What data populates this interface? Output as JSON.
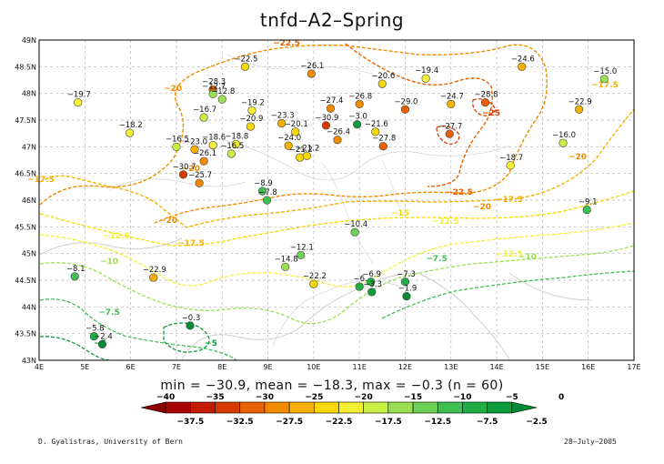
{
  "title": "tnfd–A2–Spring",
  "stats_text": "min = −30.9, mean = −18.3, max = −0.3 (n = 60)",
  "credit": "D. Gyalistras, University of Bern",
  "date": "28–July–2005",
  "axes": {
    "lon_ticks": [
      "4E",
      "5E",
      "6E",
      "7E",
      "8E",
      "9E",
      "10E",
      "11E",
      "12E",
      "13E",
      "14E",
      "15E",
      "16E",
      "17E"
    ],
    "lat_ticks": [
      "43N",
      "43.5N",
      "44N",
      "44.5N",
      "45N",
      "45.5N",
      "46N",
      "46.5N",
      "47N",
      "47.5N",
      "48N",
      "48.5N",
      "49N"
    ],
    "lon_range": [
      4,
      17
    ],
    "lat_range": [
      43,
      49
    ],
    "grid": true
  },
  "colorbar": {
    "upper_labels": [
      "−40",
      "−35",
      "−30",
      "−25",
      "−20",
      "−15",
      "−10",
      "−5",
      "0"
    ],
    "lower_labels": [
      "−37.5",
      "−32.5",
      "−27.5",
      "−22.5",
      "−17.5",
      "−12.5",
      "−7.5",
      "−2.5"
    ],
    "colors": [
      "#8b0000",
      "#a80400",
      "#c41a00",
      "#d93a00",
      "#e86000",
      "#f28a00",
      "#f5b000",
      "#f7d800",
      "#f5f033",
      "#c8ef44",
      "#9be052",
      "#6fd158",
      "#3fc052",
      "#1fae45",
      "#0a9c3a",
      "#048a30"
    ]
  },
  "contour_labels": [
    {
      "text": "−22.5",
      "color": "#e86000"
    },
    {
      "text": "−20",
      "color": "#f28a00"
    },
    {
      "text": "−17.5",
      "color": "#f5b000"
    },
    {
      "text": "−15",
      "color": "#f7d800"
    },
    {
      "text": "−12.5",
      "color": "#f5f033"
    },
    {
      "text": "−10",
      "color": "#9be052"
    },
    {
      "text": "−7.5",
      "color": "#3fc052"
    },
    {
      "text": "−5",
      "color": "#0a9c3a"
    },
    {
      "text": "−25",
      "color": "#d93a00"
    }
  ],
  "stations": [
    {
      "label": "−28.3",
      "lon": 7.8,
      "lat": 48.07,
      "value": -28.3
    },
    {
      "label": "−26.1",
      "lon": 9.95,
      "lat": 48.37,
      "value": -26.1
    },
    {
      "label": "−22.5",
      "lon": 8.5,
      "lat": 48.5,
      "value": -22.5
    },
    {
      "label": "−20.6",
      "lon": 11.5,
      "lat": 48.18,
      "value": -20.6
    },
    {
      "label": "−19.4",
      "lon": 12.45,
      "lat": 48.28,
      "value": -19.4
    },
    {
      "label": "−24.6",
      "lon": 14.55,
      "lat": 48.5,
      "value": -24.6
    },
    {
      "label": "−15.0",
      "lon": 16.35,
      "lat": 48.27,
      "value": -15.0
    },
    {
      "label": "−19.7",
      "lon": 4.85,
      "lat": 47.83,
      "value": -19.7
    },
    {
      "label": "−12.7",
      "lon": 7.8,
      "lat": 47.99,
      "value": -12.7
    },
    {
      "label": "−12.8",
      "lon": 8.0,
      "lat": 47.89,
      "value": -12.8
    },
    {
      "label": "−16.7",
      "lon": 7.6,
      "lat": 47.55,
      "value": -16.7
    },
    {
      "label": "−19.2",
      "lon": 8.65,
      "lat": 47.68,
      "value": -19.2
    },
    {
      "label": "−27.4",
      "lon": 10.37,
      "lat": 47.72,
      "value": -27.4
    },
    {
      "label": "−26.8",
      "lon": 11.0,
      "lat": 47.8,
      "value": -26.8
    },
    {
      "label": "−29.0",
      "lon": 12.0,
      "lat": 47.7,
      "value": -29.0
    },
    {
      "label": "−24.7",
      "lon": 13.0,
      "lat": 47.8,
      "value": -24.7
    },
    {
      "label": "−28.8",
      "lon": 13.75,
      "lat": 47.83,
      "value": -28.8
    },
    {
      "label": "−22.9",
      "lon": 15.8,
      "lat": 47.7,
      "value": -22.9
    },
    {
      "label": "−18.2",
      "lon": 5.98,
      "lat": 47.26,
      "value": -18.2
    },
    {
      "label": "−20.9",
      "lon": 8.62,
      "lat": 47.38,
      "value": -20.9
    },
    {
      "label": "−23.3",
      "lon": 9.3,
      "lat": 47.44,
      "value": -23.3
    },
    {
      "label": "−20.1",
      "lon": 9.6,
      "lat": 47.28,
      "value": -20.1
    },
    {
      "label": "−30.9",
      "lon": 10.27,
      "lat": 47.4,
      "value": -30.9
    },
    {
      "label": "−3.0",
      "lon": 10.95,
      "lat": 47.42,
      "value": -3.0
    },
    {
      "label": "−21.6",
      "lon": 11.35,
      "lat": 47.28,
      "value": -21.6
    },
    {
      "label": "−27.7",
      "lon": 12.97,
      "lat": 47.24,
      "value": -27.7
    },
    {
      "label": "−16.0",
      "lon": 15.45,
      "lat": 47.07,
      "value": -16.0
    },
    {
      "label": "−16.5",
      "lon": 7.0,
      "lat": 47.0,
      "value": -16.5
    },
    {
      "label": "−23.0",
      "lon": 7.4,
      "lat": 46.95,
      "value": -23.0
    },
    {
      "label": "−18.6",
      "lon": 7.8,
      "lat": 47.03,
      "value": -18.6
    },
    {
      "label": "−18.8",
      "lon": 8.3,
      "lat": 47.05,
      "value": -18.8
    },
    {
      "label": "−16.5",
      "lon": 8.2,
      "lat": 46.87,
      "value": -16.5
    },
    {
      "label": "−26.1",
      "lon": 7.6,
      "lat": 46.73,
      "value": -26.1
    },
    {
      "label": "−24.0",
      "lon": 9.45,
      "lat": 47.02,
      "value": -24.0
    },
    {
      "label": "−21.2",
      "lon": 9.7,
      "lat": 46.8,
      "value": -21.2
    },
    {
      "label": "−21.2",
      "lon": 9.85,
      "lat": 46.83,
      "value": -21.2
    },
    {
      "label": "−26.4",
      "lon": 10.52,
      "lat": 47.13,
      "value": -26.4
    },
    {
      "label": "−27.8",
      "lon": 11.52,
      "lat": 47.01,
      "value": -27.8
    },
    {
      "label": "−18.7",
      "lon": 14.3,
      "lat": 46.65,
      "value": -18.7
    },
    {
      "label": "−30.7",
      "lon": 7.15,
      "lat": 46.48,
      "value": -30.7
    },
    {
      "label": "−25.7",
      "lon": 7.5,
      "lat": 46.32,
      "value": -25.7
    },
    {
      "label": "−8.9",
      "lon": 8.88,
      "lat": 46.17,
      "value": -8.9
    },
    {
      "label": "−7.8",
      "lon": 8.98,
      "lat": 46.0,
      "value": -7.8
    },
    {
      "label": "−9.1",
      "lon": 15.97,
      "lat": 45.82,
      "value": -9.1
    },
    {
      "label": "−10.4",
      "lon": 10.9,
      "lat": 45.4,
      "value": -10.4
    },
    {
      "label": "−12.1",
      "lon": 9.72,
      "lat": 44.97,
      "value": -12.1
    },
    {
      "label": "−14.8",
      "lon": 9.38,
      "lat": 44.75,
      "value": -14.8
    },
    {
      "label": "−8.1",
      "lon": 4.78,
      "lat": 44.57,
      "value": -8.1
    },
    {
      "label": "−22.9",
      "lon": 6.5,
      "lat": 44.55,
      "value": -22.9
    },
    {
      "label": "−22.2",
      "lon": 10.0,
      "lat": 44.43,
      "value": -22.2
    },
    {
      "label": "−6.9",
      "lon": 11.25,
      "lat": 44.47,
      "value": -6.9
    },
    {
      "label": "−7.3",
      "lon": 12.0,
      "lat": 44.47,
      "value": -7.3
    },
    {
      "label": "−6.",
      "lon": 11.0,
      "lat": 44.38,
      "value": -6.0
    },
    {
      "label": "−3.3",
      "lon": 11.27,
      "lat": 44.28,
      "value": -3.3
    },
    {
      "label": "−1.9",
      "lon": 12.03,
      "lat": 44.2,
      "value": -1.9
    },
    {
      "label": "−0.3",
      "lon": 7.3,
      "lat": 43.65,
      "value": -0.3
    },
    {
      "label": "−5.8",
      "lon": 5.2,
      "lat": 43.45,
      "value": -5.8
    },
    {
      "label": "−2.4",
      "lon": 5.38,
      "lat": 43.3,
      "value": -2.4
    }
  ]
}
